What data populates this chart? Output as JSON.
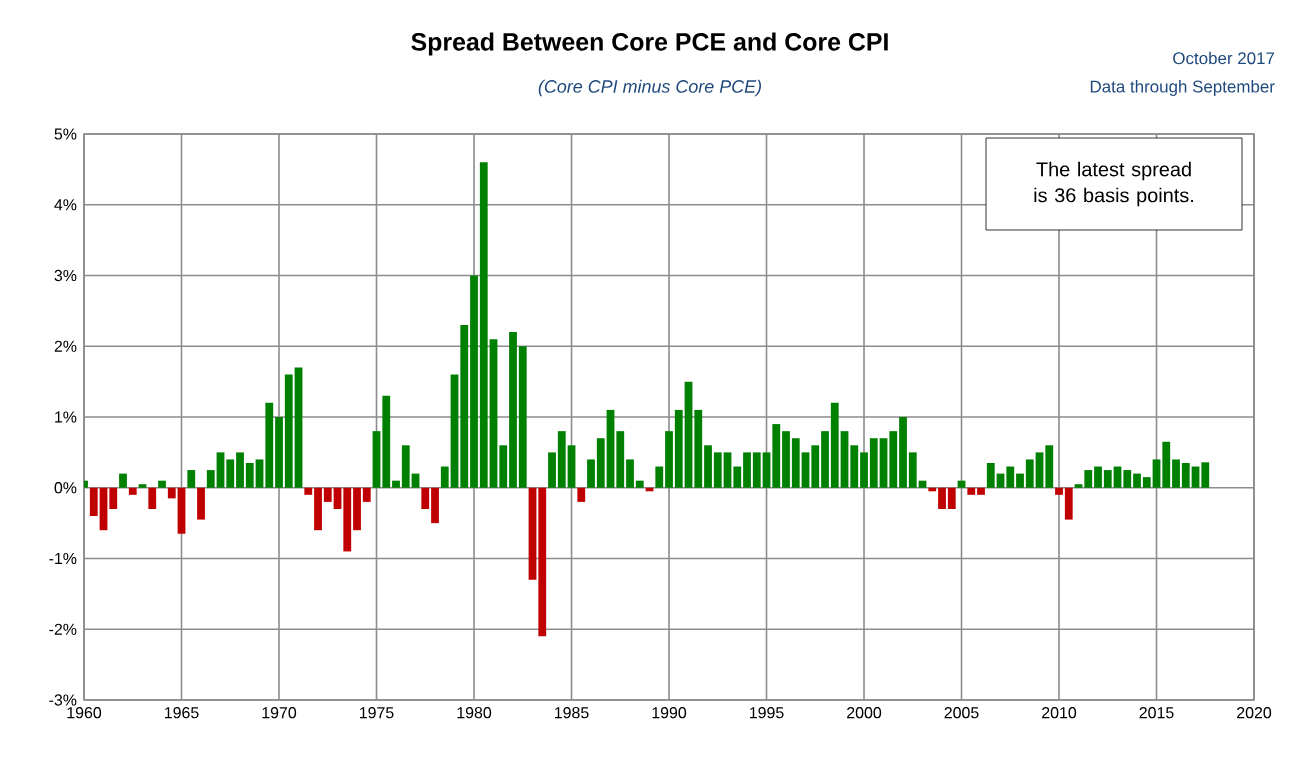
{
  "chart_data": {
    "type": "bar",
    "title": "Spread Between Core PCE and Core CPI",
    "subtitle": "(Core CPI minus Core PCE)",
    "annotations": [
      "October 2017",
      "Data through September",
      "The latest spread is 36 basis points."
    ],
    "x": [
      1960.0,
      1960.5,
      1961.0,
      1961.5,
      1962.0,
      1962.5,
      1963.0,
      1963.5,
      1964.0,
      1964.5,
      1965.0,
      1965.5,
      1966.0,
      1966.5,
      1967.0,
      1967.5,
      1968.0,
      1968.5,
      1969.0,
      1969.5,
      1970.0,
      1970.5,
      1971.0,
      1971.5,
      1972.0,
      1972.5,
      1973.0,
      1973.5,
      1974.0,
      1974.5,
      1975.0,
      1975.5,
      1976.0,
      1976.5,
      1977.0,
      1977.5,
      1978.0,
      1978.5,
      1979.0,
      1979.5,
      1980.0,
      1980.5,
      1981.0,
      1981.5,
      1982.0,
      1982.5,
      1983.0,
      1983.5,
      1984.0,
      1984.5,
      1985.0,
      1985.5,
      1986.0,
      1986.5,
      1987.0,
      1987.5,
      1988.0,
      1988.5,
      1989.0,
      1989.5,
      1990.0,
      1990.5,
      1991.0,
      1991.5,
      1992.0,
      1992.5,
      1993.0,
      1993.5,
      1994.0,
      1994.5,
      1995.0,
      1995.5,
      1996.0,
      1996.5,
      1997.0,
      1997.5,
      1998.0,
      1998.5,
      1999.0,
      1999.5,
      2000.0,
      2000.5,
      2001.0,
      2001.5,
      2002.0,
      2002.5,
      2003.0,
      2003.5,
      2004.0,
      2004.5,
      2005.0,
      2005.5,
      2006.0,
      2006.5,
      2007.0,
      2007.5,
      2008.0,
      2008.5,
      2009.0,
      2009.5,
      2010.0,
      2010.5,
      2011.0,
      2011.5,
      2012.0,
      2012.5,
      2013.0,
      2013.5,
      2014.0,
      2014.5,
      2015.0,
      2015.5,
      2016.0,
      2016.5,
      2017.0,
      2017.5
    ],
    "series": [
      {
        "color": "#008000",
        "values": [
          0.1,
          null,
          null,
          null,
          0.2,
          null,
          0.05,
          null,
          0.1,
          null,
          null,
          0.25,
          null,
          0.25,
          0.5,
          0.4,
          0.5,
          0.35,
          0.4,
          1.2,
          1.0,
          1.6,
          1.7,
          null,
          null,
          null,
          null,
          null,
          null,
          null,
          0.8,
          1.3,
          0.1,
          0.6,
          0.2,
          null,
          null,
          0.3,
          1.6,
          2.3,
          3.0,
          4.6,
          2.1,
          0.6,
          2.2,
          2.0,
          null,
          null,
          0.5,
          0.8,
          0.6,
          null,
          0.4,
          0.7,
          1.1,
          0.8,
          0.4,
          0.1,
          null,
          0.3,
          0.8,
          1.1,
          1.5,
          1.1,
          0.6,
          0.5,
          0.5,
          0.3,
          0.5,
          0.5,
          0.5,
          0.9,
          0.8,
          0.7,
          0.5,
          0.6,
          0.8,
          1.2,
          0.8,
          0.6,
          0.5,
          0.7,
          0.7,
          0.8,
          1.0,
          0.5,
          0.1,
          null,
          null,
          null,
          0.1,
          null,
          null,
          0.35,
          0.2,
          0.3,
          0.2,
          0.4,
          0.5,
          0.6,
          null,
          null,
          0.05,
          0.25,
          0.3,
          0.25,
          0.3,
          0.25,
          0.2,
          0.15,
          0.4,
          0.65,
          0.4,
          0.35,
          0.3,
          0.36
        ]
      },
      {
        "color": "#c00000",
        "values": [
          null,
          -0.4,
          -0.6,
          -0.3,
          null,
          -0.1,
          null,
          -0.3,
          null,
          -0.15,
          -0.65,
          null,
          -0.45,
          null,
          null,
          null,
          null,
          null,
          null,
          null,
          null,
          null,
          null,
          -0.1,
          -0.6,
          -0.2,
          -0.3,
          -0.9,
          -0.6,
          -0.2,
          null,
          null,
          null,
          null,
          null,
          -0.3,
          -0.5,
          null,
          null,
          null,
          null,
          null,
          null,
          null,
          null,
          null,
          -1.3,
          -2.1,
          null,
          null,
          null,
          -0.2,
          null,
          null,
          null,
          null,
          null,
          null,
          -0.05,
          null,
          null,
          null,
          null,
          null,
          null,
          null,
          null,
          null,
          null,
          null,
          null,
          null,
          null,
          null,
          null,
          null,
          null,
          null,
          null,
          null,
          null,
          null,
          null,
          null,
          null,
          null,
          null,
          -0.05,
          -0.3,
          -0.3,
          null,
          -0.1,
          -0.1,
          null,
          null,
          null,
          null,
          null,
          null,
          null,
          -0.1,
          -0.45,
          null,
          null,
          null,
          null,
          null,
          null,
          null,
          null,
          null,
          null,
          null,
          null,
          null,
          null
        ]
      }
    ],
    "xlim": [
      1960,
      2020
    ],
    "xticks": [
      1960,
      1965,
      1970,
      1975,
      1980,
      1985,
      1990,
      1995,
      2000,
      2005,
      2010,
      2015,
      2020
    ],
    "ylim": [
      -3,
      5
    ],
    "yticks": [
      {
        "value": -3,
        "label": "-3%"
      },
      {
        "value": -2,
        "label": "-2%"
      },
      {
        "value": -1,
        "label": "-1%"
      },
      {
        "value": 0,
        "label": "0%"
      },
      {
        "value": 1,
        "label": "1%"
      },
      {
        "value": 2,
        "label": "2%"
      },
      {
        "value": 3,
        "label": "3%"
      },
      {
        "value": 4,
        "label": "4%"
      },
      {
        "value": 5,
        "label": "5%"
      }
    ],
    "grid": true
  }
}
